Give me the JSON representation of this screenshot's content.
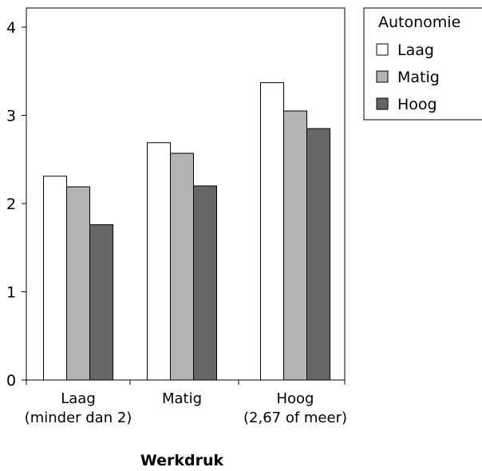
{
  "chart_data": {
    "type": "bar",
    "categories": [
      [
        "Laag",
        "(minder dan 2)"
      ],
      [
        "Matig"
      ],
      [
        "Hoog",
        "(2,67 of meer)"
      ]
    ],
    "series": [
      {
        "name": "Laag",
        "values": [
          2.31,
          2.69,
          3.37
        ],
        "color": "#ffffff"
      },
      {
        "name": "Matig",
        "values": [
          2.19,
          2.57,
          3.05
        ],
        "color": "#b3b3b3"
      },
      {
        "name": "Hoog",
        "values": [
          1.76,
          2.2,
          2.85
        ],
        "color": "#666666"
      }
    ],
    "title": "",
    "xlabel": "Werkdruk",
    "ylabel": "",
    "ylim": [
      0,
      4.2
    ],
    "yticks": [
      {
        "value": 0,
        "label": "0"
      },
      {
        "value": 1,
        "label": "1"
      },
      {
        "value": 2,
        "label": "2"
      },
      {
        "value": 3,
        "label": "3"
      },
      {
        "value": 4,
        "label": "4"
      }
    ],
    "legend": {
      "title": "Autonomie",
      "position": "top-right"
    },
    "grid": false
  }
}
